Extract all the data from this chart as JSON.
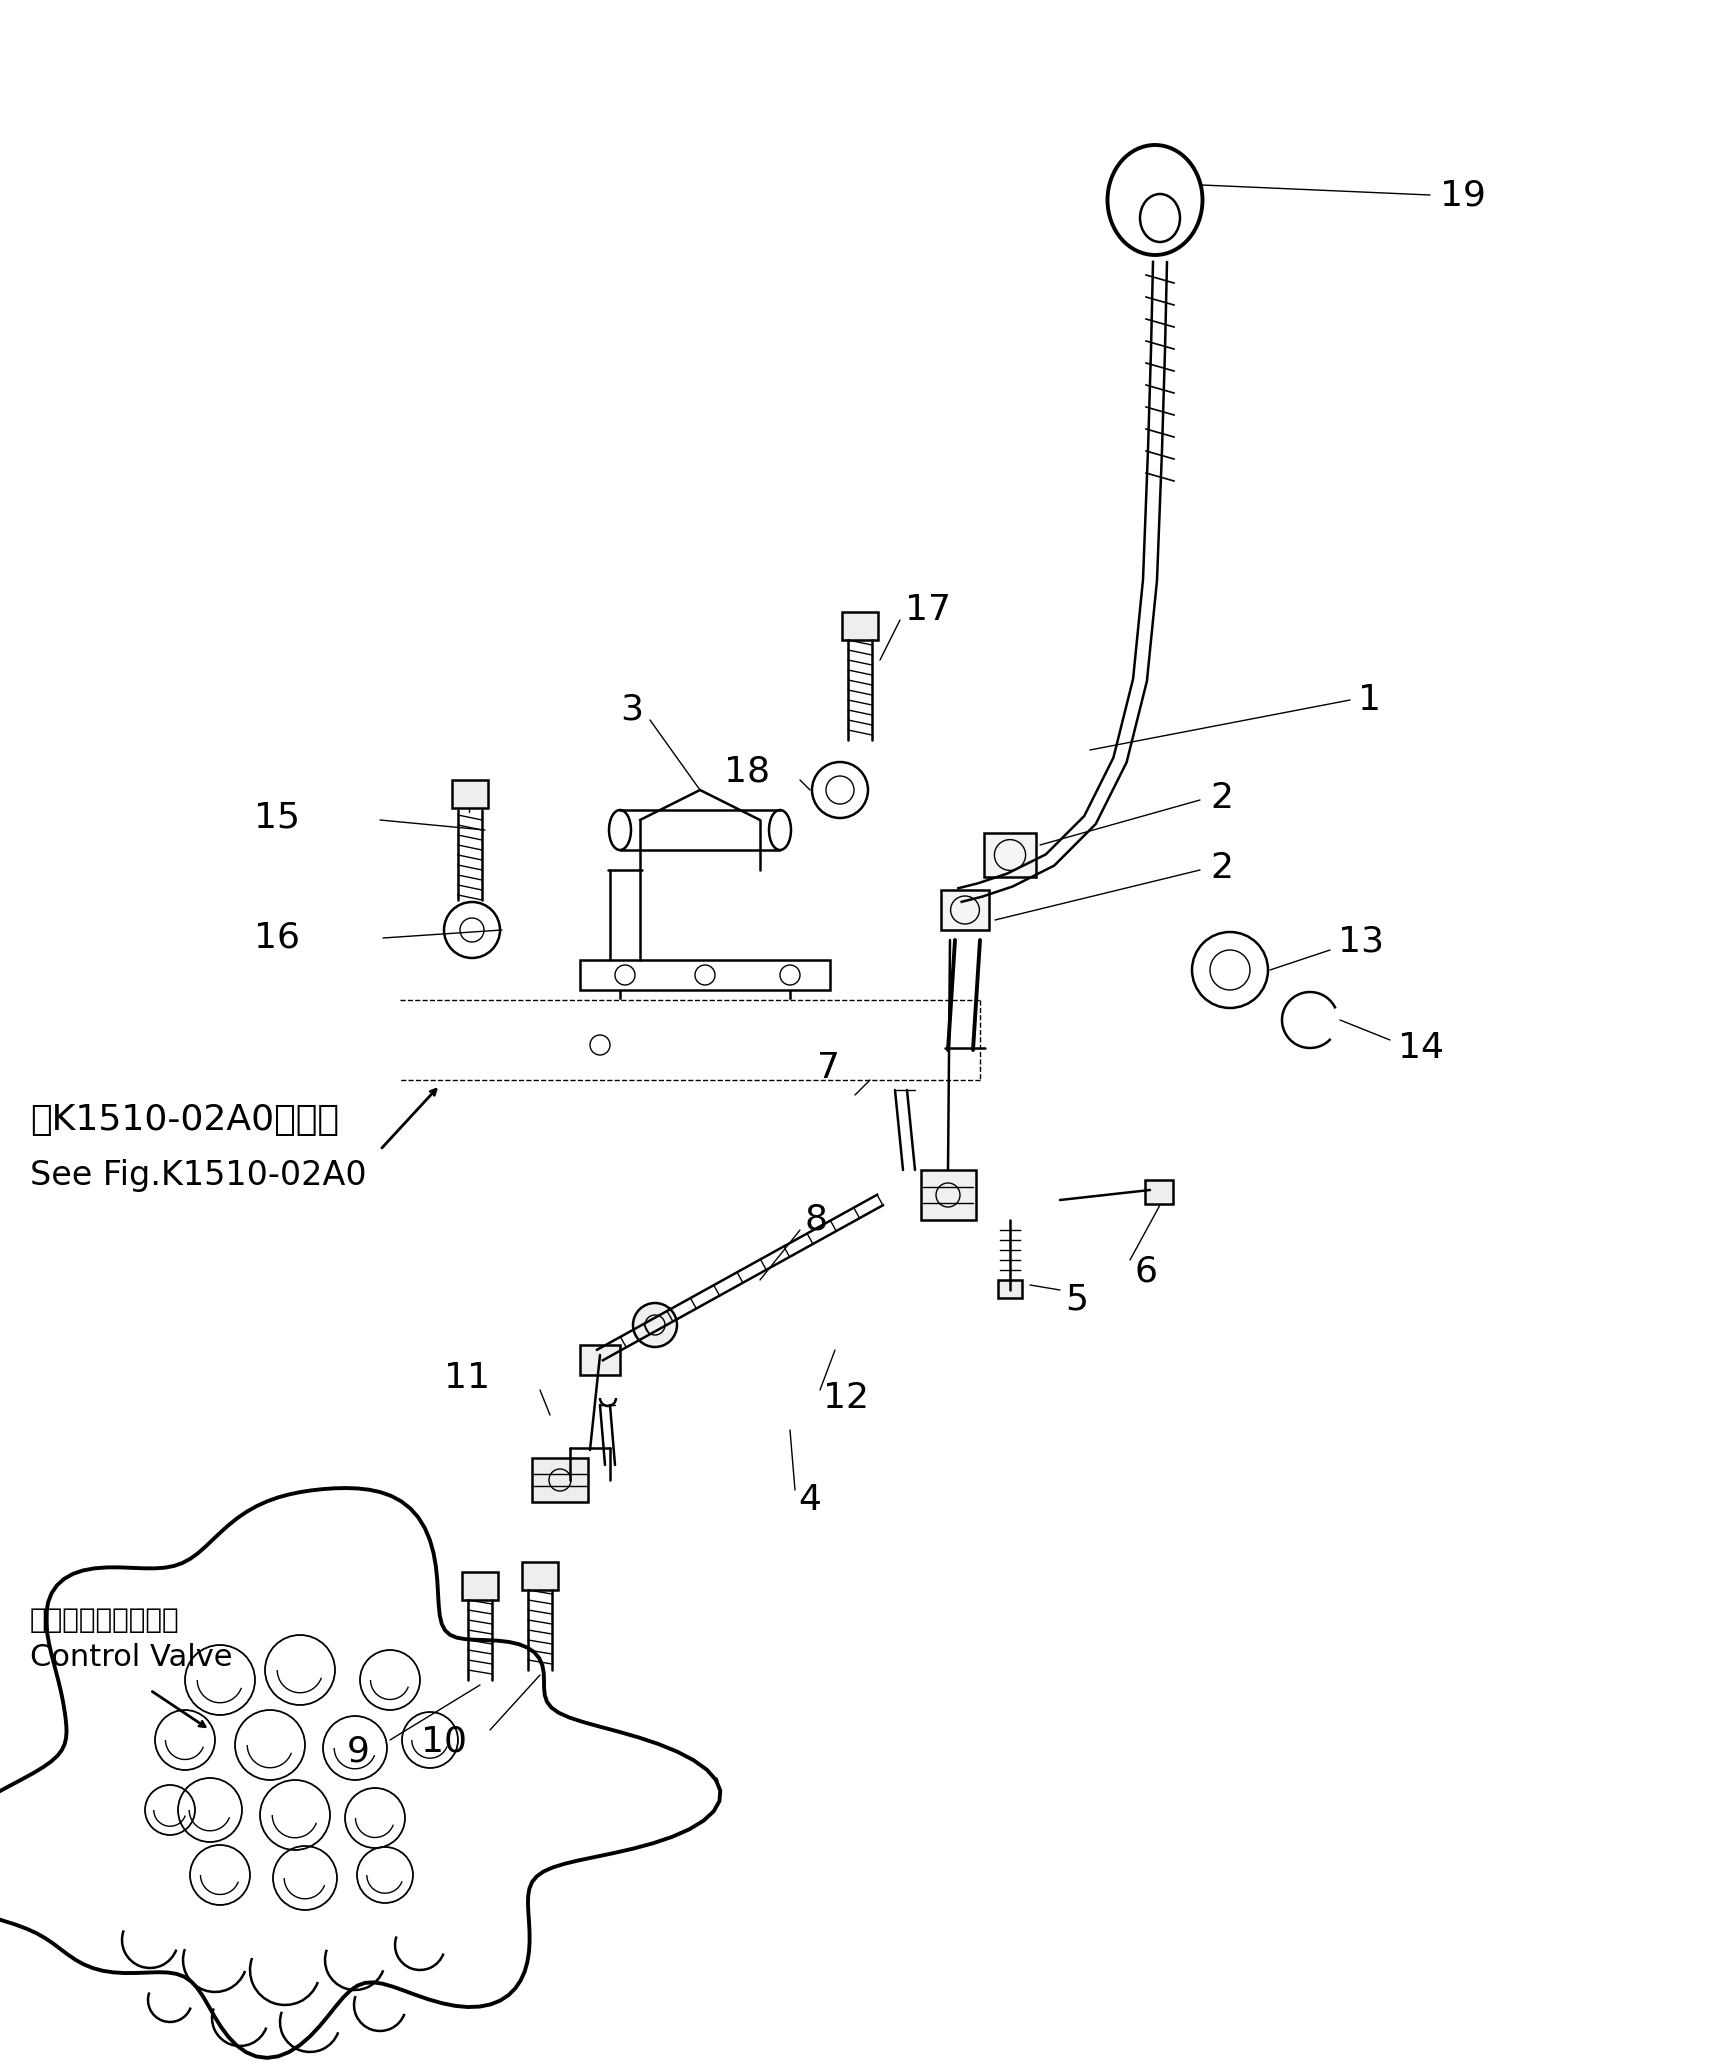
{
  "bg_color": "#ffffff",
  "lc": "#000000",
  "fig_width": 17.27,
  "fig_height": 20.62,
  "ref_text_line1": "第K1510-02A0図参照",
  "ref_text_line2": "See Fig.K1510-02A0",
  "control_valve_jp": "コントロールバルブ",
  "control_valve_en": "Control Valve"
}
